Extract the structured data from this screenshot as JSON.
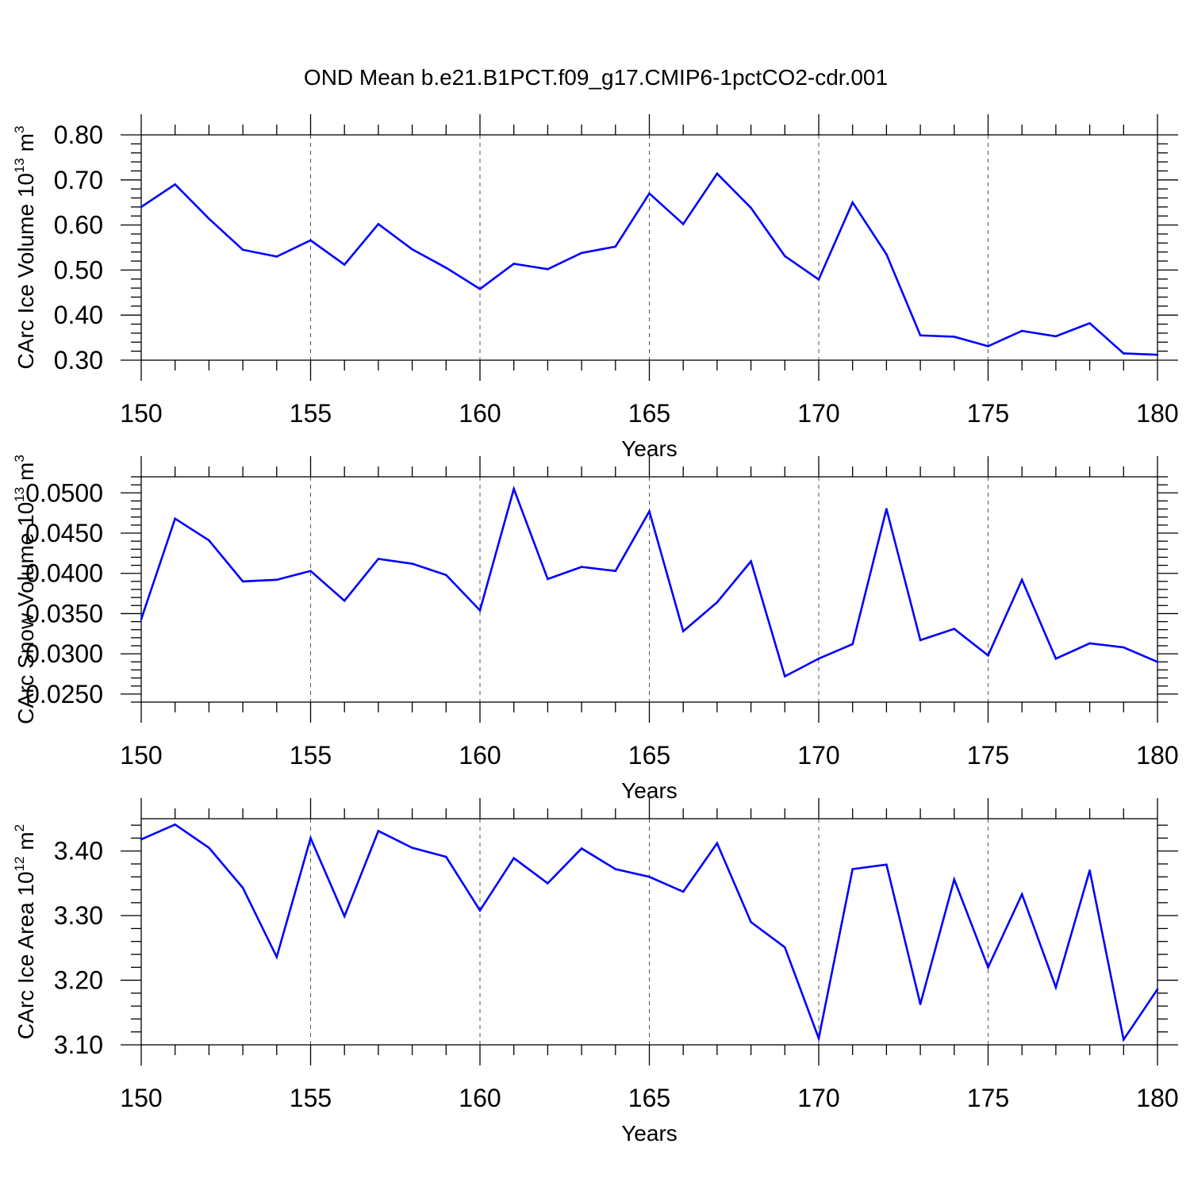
{
  "title": "OND Mean b.e21.B1PCT.f09_g17.CMIP6-1pctCO2-cdr.001",
  "chart_data": [
    {
      "type": "line",
      "ylabel": {
        "base": "CArc Ice Volume 10",
        "exp1": "13",
        "mid": " m",
        "exp2": "3"
      },
      "xlabel": "Years",
      "xlim": [
        150,
        180
      ],
      "ylim": [
        0.3,
        0.8
      ],
      "yticks": [
        0.3,
        0.4,
        0.5,
        0.6,
        0.7,
        0.8
      ],
      "ytick_labels": [
        "0.30",
        "0.40",
        "0.50",
        "0.60",
        "0.70",
        "0.80"
      ],
      "xticks": [
        150,
        155,
        160,
        165,
        170,
        175,
        180
      ],
      "xtick_labels": [
        "150",
        "155",
        "160",
        "165",
        "170",
        "175",
        "180"
      ],
      "x": [
        150,
        151,
        152,
        153,
        154,
        155,
        156,
        157,
        158,
        159,
        160,
        161,
        162,
        163,
        164,
        165,
        166,
        167,
        168,
        169,
        170,
        171,
        172,
        173,
        174,
        175,
        176,
        177,
        178,
        179,
        180
      ],
      "values": [
        0.64,
        0.69,
        0.614,
        0.545,
        0.53,
        0.566,
        0.512,
        0.602,
        0.546,
        0.505,
        0.458,
        0.514,
        0.502,
        0.538,
        0.552,
        0.67,
        0.602,
        0.714,
        0.638,
        0.531,
        0.479,
        0.65,
        0.535,
        0.355,
        0.352,
        0.331,
        0.365,
        0.353,
        0.382,
        0.315,
        0.312
      ],
      "line_color": "#0000ff"
    },
    {
      "type": "line",
      "ylabel": {
        "base": "CArc Snow Volume 10",
        "exp1": "13",
        "mid": " m",
        "exp2": "3"
      },
      "xlabel": "Years",
      "xlim": [
        150,
        180
      ],
      "ylim": [
        0.024,
        0.052
      ],
      "yticks": [
        0.025,
        0.03,
        0.035,
        0.04,
        0.045,
        0.05
      ],
      "ytick_labels": [
        "0.0250",
        "0.0300",
        "0.0350",
        "0.0400",
        "0.0450",
        "0.0500"
      ],
      "xticks": [
        150,
        155,
        160,
        165,
        170,
        175,
        180
      ],
      "xtick_labels": [
        "150",
        "155",
        "160",
        "165",
        "170",
        "175",
        "180"
      ],
      "x": [
        150,
        151,
        152,
        153,
        154,
        155,
        156,
        157,
        158,
        159,
        160,
        161,
        162,
        163,
        164,
        165,
        166,
        167,
        168,
        169,
        170,
        171,
        172,
        173,
        174,
        175,
        176,
        177,
        178,
        179,
        180
      ],
      "values": [
        0.0343,
        0.0468,
        0.0441,
        0.039,
        0.0392,
        0.0403,
        0.0366,
        0.0418,
        0.0412,
        0.0398,
        0.0354,
        0.0505,
        0.0393,
        0.0408,
        0.0403,
        0.0477,
        0.0328,
        0.0364,
        0.0415,
        0.0272,
        0.0294,
        0.0312,
        0.048,
        0.0317,
        0.0331,
        0.0298,
        0.0392,
        0.0294,
        0.0313,
        0.0308,
        0.029
      ],
      "line_color": "#0000ff"
    },
    {
      "type": "line",
      "ylabel": {
        "base": "CArc Ice Area 10",
        "exp1": "12",
        "mid": " m",
        "exp2": "2"
      },
      "xlabel": "Years",
      "xlim": [
        150,
        180
      ],
      "ylim": [
        3.1,
        3.45
      ],
      "yticks": [
        3.1,
        3.2,
        3.3,
        3.4
      ],
      "ytick_labels": [
        "3.10",
        "3.20",
        "3.30",
        "3.40"
      ],
      "xticks": [
        150,
        155,
        160,
        165,
        170,
        175,
        180
      ],
      "xtick_labels": [
        "150",
        "155",
        "160",
        "165",
        "170",
        "175",
        "180"
      ],
      "x": [
        150,
        151,
        152,
        153,
        154,
        155,
        156,
        157,
        158,
        159,
        160,
        161,
        162,
        163,
        164,
        165,
        166,
        167,
        168,
        169,
        170,
        171,
        172,
        173,
        174,
        175,
        176,
        177,
        178,
        179,
        180
      ],
      "values": [
        3.418,
        3.441,
        3.405,
        3.343,
        3.236,
        3.42,
        3.299,
        3.431,
        3.405,
        3.391,
        3.308,
        3.389,
        3.35,
        3.404,
        3.372,
        3.36,
        3.337,
        3.412,
        3.29,
        3.251,
        3.11,
        3.372,
        3.379,
        3.163,
        3.356,
        3.22,
        3.333,
        3.189,
        3.37,
        3.108,
        3.186
      ],
      "line_color": "#0000ff"
    }
  ]
}
